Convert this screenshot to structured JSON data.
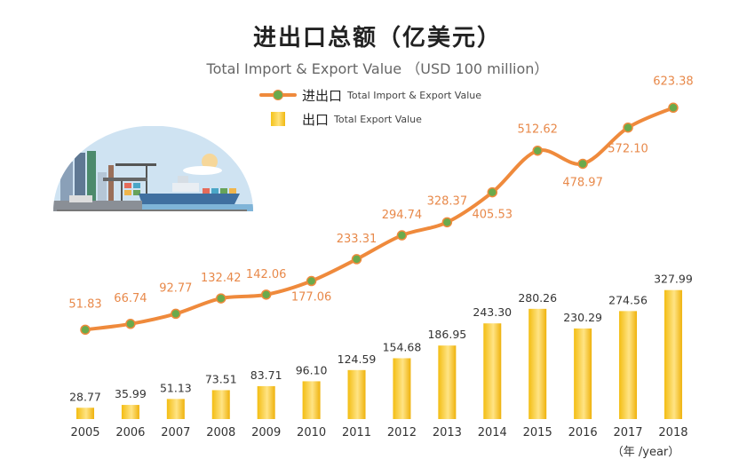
{
  "title": "进出口总额（亿美元）",
  "subtitle": "Total Import & Export Value （USD 100 million）",
  "legend": {
    "line": {
      "cn": "进出口",
      "en": "Total Import & Export Value"
    },
    "bar": {
      "cn": "出口",
      "en": "Total Export Value"
    }
  },
  "x_unit_label": "（年 /year）",
  "colors": {
    "line": "#ef8a3c",
    "marker": "#6aaa4c",
    "bar_gold": "#f4c21a",
    "line_label": "#e8894a",
    "bar_label": "#333333"
  },
  "chart_data": {
    "type": "bar+line",
    "categories": [
      "2005",
      "2006",
      "2007",
      "2008",
      "2009",
      "2010",
      "2011",
      "2012",
      "2013",
      "2014",
      "2015",
      "2016",
      "2017",
      "2018"
    ],
    "series": [
      {
        "name": "进出口 Total Import & Export Value",
        "type": "line",
        "values": [
          51.83,
          66.74,
          92.77,
          132.42,
          142.06,
          177.06,
          233.31,
          294.74,
          328.37,
          405.53,
          512.62,
          478.97,
          572.1,
          623.38
        ]
      },
      {
        "name": "出口 Total Export Value",
        "type": "bar",
        "values": [
          28.77,
          35.99,
          51.13,
          73.51,
          83.71,
          96.1,
          124.59,
          154.68,
          186.95,
          243.3,
          280.26,
          230.29,
          274.56,
          327.99
        ]
      }
    ],
    "title": "进出口总额（亿美元）",
    "data_labels": true,
    "grid": false
  }
}
